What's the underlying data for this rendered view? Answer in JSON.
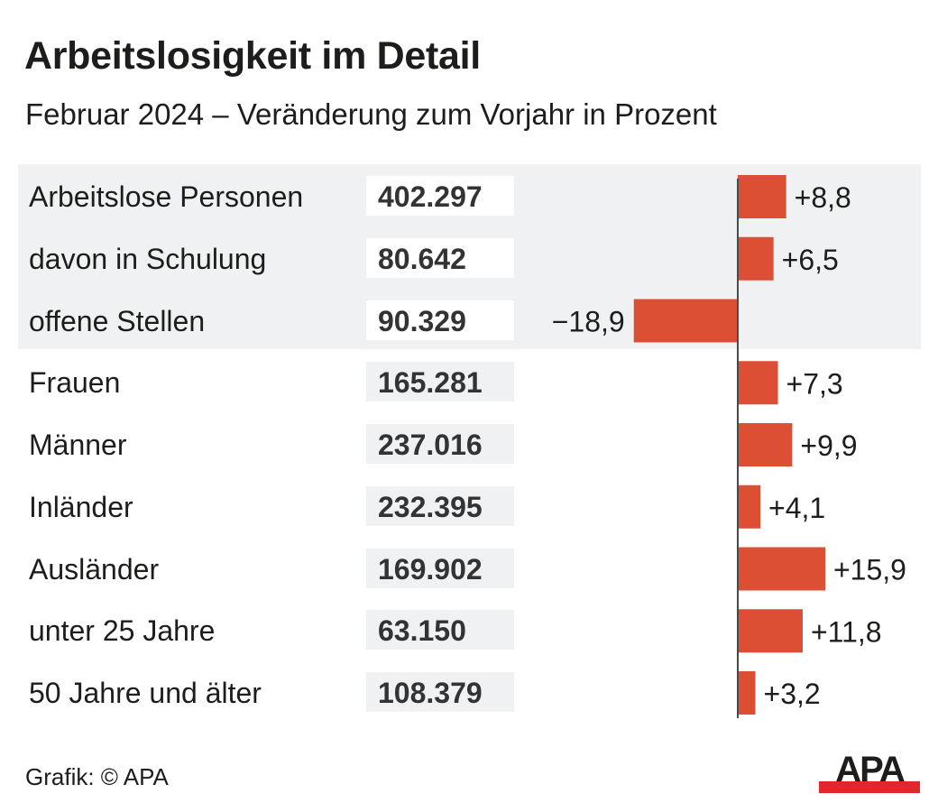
{
  "header": {
    "title": "Arbeitslosigkeit im Detail",
    "subtitle": "Februar 2024 – Veränderung zum Vorjahr in Prozent"
  },
  "footer": {
    "source": "Grafik: © APA",
    "logo_text": "APA"
  },
  "colors": {
    "bar": "#dc4f35",
    "band": "#f0f1f3",
    "axis": "#4a4a4a",
    "logo_red": "#e3262b",
    "text": "#1d1d1b"
  },
  "rows": [
    {
      "label": "Arbeitslose Personen",
      "count": "402.297",
      "change": 8.8,
      "change_label": "+8,8",
      "highlight": true
    },
    {
      "label": "davon in Schulung",
      "count": "80.642",
      "change": 6.5,
      "change_label": "+6,5",
      "highlight": true
    },
    {
      "label": "offene Stellen",
      "count": "90.329",
      "change": -18.9,
      "change_label": "−18,9",
      "highlight": true
    },
    {
      "label": "Frauen",
      "count": "165.281",
      "change": 7.3,
      "change_label": "+7,3",
      "highlight": false
    },
    {
      "label": "Männer",
      "count": "237.016",
      "change": 9.9,
      "change_label": "+9,9",
      "highlight": false
    },
    {
      "label": "Inländer",
      "count": "232.395",
      "change": 4.1,
      "change_label": "+4,1",
      "highlight": false
    },
    {
      "label": "Ausländer",
      "count": "169.902",
      "change": 15.9,
      "change_label": "+15,9",
      "highlight": false
    },
    {
      "label": "unter 25 Jahre",
      "count": "63.150",
      "change": 11.8,
      "change_label": "+11,8",
      "highlight": false
    },
    {
      "label": "50 Jahre und älter",
      "count": "108.379",
      "change": 3.2,
      "change_label": "+3,2",
      "highlight": false
    }
  ],
  "chart_data": {
    "type": "bar",
    "orientation": "horizontal",
    "title": "Arbeitslosigkeit im Detail",
    "subtitle": "Februar 2024 – Veränderung zum Vorjahr in Prozent",
    "categories": [
      "Arbeitslose Personen",
      "davon in Schulung",
      "offene Stellen",
      "Frauen",
      "Männer",
      "Inländer",
      "Ausländer",
      "unter 25 Jahre",
      "50 Jahre und älter"
    ],
    "values": [
      8.8,
      6.5,
      -18.9,
      7.3,
      9.9,
      4.1,
      15.9,
      11.8,
      3.2
    ],
    "data_labels": [
      "+8,8",
      "+6,5",
      "−18,9",
      "+7,3",
      "+9,9",
      "+4,1",
      "+15,9",
      "+11,8",
      "+3,2"
    ],
    "absolute_values": [
      "402.297",
      "80.642",
      "90.329",
      "165.281",
      "237.016",
      "232.395",
      "169.902",
      "63.150",
      "108.379"
    ],
    "xlabel": "",
    "ylabel": "Veränderung zum Vorjahr in Prozent",
    "xlim": [
      -18.9,
      15.9
    ],
    "grid": false,
    "legend": "none"
  }
}
